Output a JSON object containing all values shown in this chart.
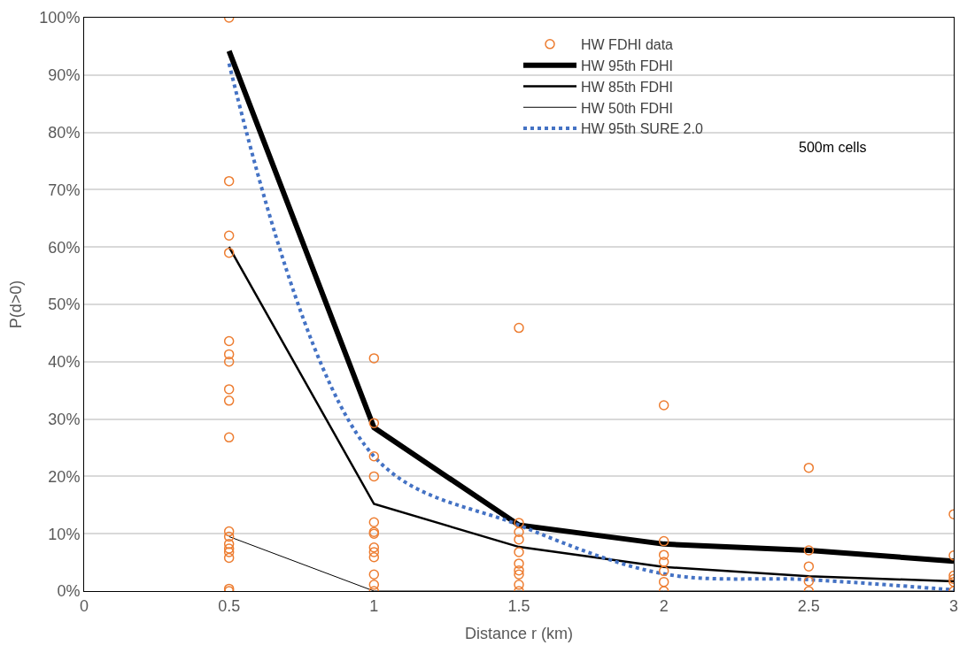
{
  "chart_data": {
    "type": "line",
    "xlabel": "Distance r (km)",
    "ylabel": "P(d>0)",
    "xlim": [
      0,
      3
    ],
    "xticks": [
      0,
      0.5,
      1,
      1.5,
      2,
      2.5,
      3
    ],
    "ylim": [
      0,
      100
    ],
    "yticks": [
      {
        "value": 0,
        "label": "0%"
      },
      {
        "value": 10,
        "label": "10%"
      },
      {
        "value": 20,
        "label": "20%"
      },
      {
        "value": 30,
        "label": "30%"
      },
      {
        "value": 40,
        "label": "40%"
      },
      {
        "value": 50,
        "label": "50%"
      },
      {
        "value": 60,
        "label": "60%"
      },
      {
        "value": 70,
        "label": "70%"
      },
      {
        "value": 80,
        "label": "80%"
      },
      {
        "value": 90,
        "label": "90%"
      },
      {
        "value": 100,
        "label": "100%"
      }
    ],
    "grid": "y",
    "legend": "top right",
    "annotations": [
      "500m cells"
    ],
    "series": [
      {
        "name": "HW FDHI data",
        "type": "scatter",
        "marker": "circle",
        "color": "#ed7d31",
        "x": [
          0.5,
          0.5,
          0.5,
          0.5,
          0.5,
          0.5,
          0.5,
          0.5,
          0.5,
          0.5,
          0.5,
          0.5,
          0.5,
          0.5,
          0.5,
          0.5,
          0.5,
          0.5,
          1,
          1,
          1,
          1,
          1,
          1,
          1,
          1,
          1,
          1,
          1,
          1,
          1,
          1.5,
          1.5,
          1.5,
          1.5,
          1.5,
          1.5,
          1.5,
          1.5,
          1.5,
          1.5,
          2,
          2,
          2,
          2,
          2,
          2,
          2,
          2.5,
          2.5,
          2.5,
          2.5,
          2.5,
          3,
          3,
          3,
          3,
          3,
          3
        ],
        "values": [
          100,
          71.5,
          62,
          59,
          43.6,
          41.3,
          40,
          35.2,
          33.2,
          26.8,
          10.4,
          9.5,
          8.2,
          7.4,
          6.8,
          5.8,
          0.4,
          0,
          40.6,
          29.3,
          23.5,
          20,
          12,
          10.3,
          10,
          7.6,
          6.8,
          5.9,
          2.9,
          1.1,
          0,
          45.9,
          11.9,
          10.3,
          9,
          6.8,
          4.8,
          3.6,
          2.9,
          1.1,
          0,
          32.4,
          8.7,
          6.3,
          5.1,
          3.5,
          1.6,
          0,
          21.5,
          7.1,
          4.3,
          1.7,
          0,
          13.4,
          6.2,
          2.7,
          2.1,
          1.6,
          0
        ]
      },
      {
        "name": "HW 95th FDHI",
        "marker": "none",
        "line_style": "solid",
        "color": "#000000",
        "x": [
          0.5,
          1,
          1.5,
          2,
          2.5,
          3
        ],
        "values": [
          94.2,
          28.5,
          11.5,
          8.2,
          7.1,
          5.2
        ]
      },
      {
        "name": "HW 85th FDHI",
        "marker": "none",
        "line_style": "solid",
        "color": "#000000",
        "x": [
          0.5,
          1,
          1.5,
          2,
          2.5,
          3
        ],
        "values": [
          60,
          15.2,
          7.7,
          4.2,
          2.6,
          1.7
        ]
      },
      {
        "name": "HW 50th FDHI",
        "marker": "none",
        "line_style": "solid",
        "color": "#000000",
        "x": [
          0.5,
          1,
          1.5,
          2,
          2.5,
          3
        ],
        "values": [
          9.5,
          0,
          0,
          0,
          0,
          0
        ]
      },
      {
        "name": "HW 95th SURE 2.0",
        "marker": "none",
        "line_style": "dotted",
        "color": "#4472c4",
        "x": [
          0.5,
          1,
          1.5,
          2,
          2.5,
          3
        ],
        "values": [
          92,
          23.5,
          11.5,
          3,
          2,
          0.2
        ]
      }
    ]
  }
}
